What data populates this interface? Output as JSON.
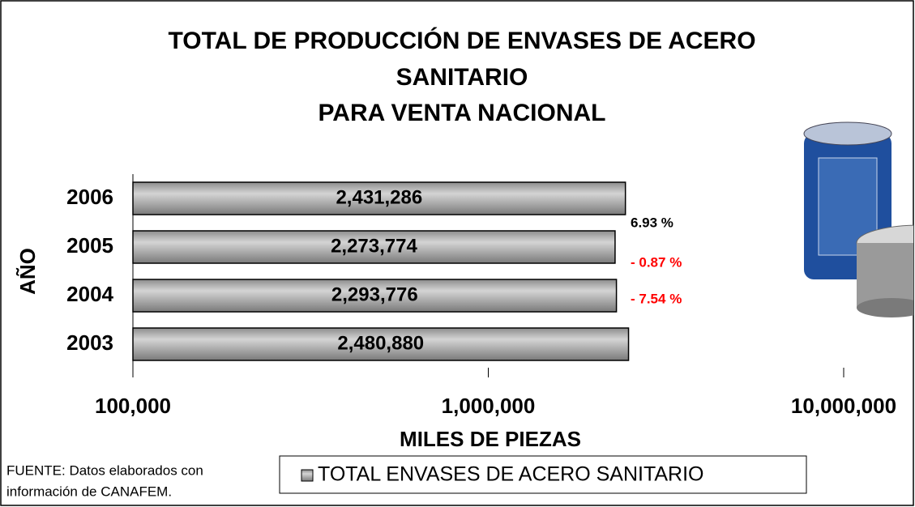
{
  "chart_data": {
    "type": "bar",
    "orientation": "horizontal",
    "title": [
      "TOTAL DE PRODUCCIÓN DE ENVASES DE ACERO",
      "SANITARIO",
      "PARA VENTA NACIONAL"
    ],
    "categories": [
      "2003",
      "2004",
      "2005",
      "2006"
    ],
    "series": [
      {
        "name": "TOTAL ENVASES DE ACERO SANITARIO",
        "color": "#a6a6a6",
        "values": [
          2480880,
          2293776,
          2273774,
          2431286
        ],
        "value_labels": [
          "2,480,880",
          "2,293,776",
          "2,273,774",
          "2,431,286"
        ]
      }
    ],
    "xlim": [
      100000,
      10000000
    ],
    "log_x": true,
    "xticks": [
      {
        "value": 100000,
        "label": "100,000"
      },
      {
        "value": 1000000,
        "label": "1,000,000"
      },
      {
        "value": 10000000,
        "label": "10,000,000"
      }
    ],
    "x_label": "MILES DE PIEZAS",
    "y_label": "AÑO",
    "annotations": [
      {
        "text": "6.93 %",
        "color": "#000000"
      },
      {
        "text": "- 0.87 %",
        "color": "#ff0000"
      },
      {
        "text": "- 7.54 %",
        "color": "#ff0000"
      }
    ],
    "source": [
      "FUENTE: Datos elaborados con",
      "información de CANAFEM."
    ]
  }
}
